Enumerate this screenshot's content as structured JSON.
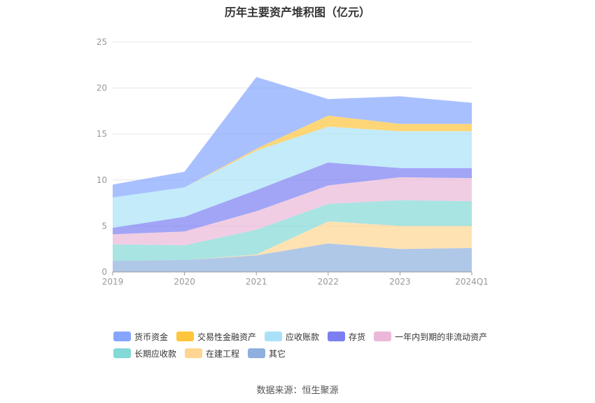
{
  "title": "历年主要资产堆积图（亿元）",
  "source": "数据来源：恒生聚源",
  "colors": {
    "grid": "#e6e6e6",
    "axis": "#999999",
    "tick_text": "#999999"
  },
  "chart_data": {
    "type": "area",
    "stacked": true,
    "categories": [
      "2019",
      "2020",
      "2021",
      "2022",
      "2023",
      "2024Q1"
    ],
    "ylim": [
      0,
      25
    ],
    "yticks": [
      0,
      5,
      10,
      15,
      20,
      25
    ],
    "grid": true,
    "legend_position": "bottom",
    "series": [
      {
        "name": "其它",
        "color": "#8fb0de",
        "values": [
          1.2,
          1.3,
          1.8,
          3.1,
          2.5,
          2.6
        ]
      },
      {
        "name": "在建工程",
        "color": "#ffd591",
        "values": [
          0.0,
          0.0,
          0.1,
          2.4,
          2.5,
          2.4
        ]
      },
      {
        "name": "长期应收款",
        "color": "#83d9d6",
        "values": [
          1.8,
          1.6,
          2.7,
          1.9,
          2.8,
          2.7
        ]
      },
      {
        "name": "一年内到期的非流动资产",
        "color": "#ebb8d9",
        "values": [
          1.1,
          1.5,
          2.0,
          2.0,
          2.5,
          2.5
        ]
      },
      {
        "name": "存货",
        "color": "#7b7ff2",
        "values": [
          0.7,
          1.6,
          2.3,
          2.5,
          1.0,
          1.1
        ]
      },
      {
        "name": "应收账款",
        "color": "#a9e2f8",
        "values": [
          3.3,
          3.2,
          4.3,
          3.9,
          4.0,
          4.0
        ]
      },
      {
        "name": "交易性金融资产",
        "color": "#ffc53d",
        "values": [
          0.0,
          0.0,
          0.2,
          1.2,
          0.8,
          0.8
        ]
      },
      {
        "name": "货币资金",
        "color": "#85a5ff",
        "values": [
          1.4,
          1.7,
          7.8,
          1.8,
          3.0,
          2.3
        ]
      }
    ],
    "legend_order": [
      "货币资金",
      "交易性金融资产",
      "应收账款",
      "存货",
      "一年内到期的非流动资产",
      "长期应收款",
      "在建工程",
      "其它"
    ]
  }
}
